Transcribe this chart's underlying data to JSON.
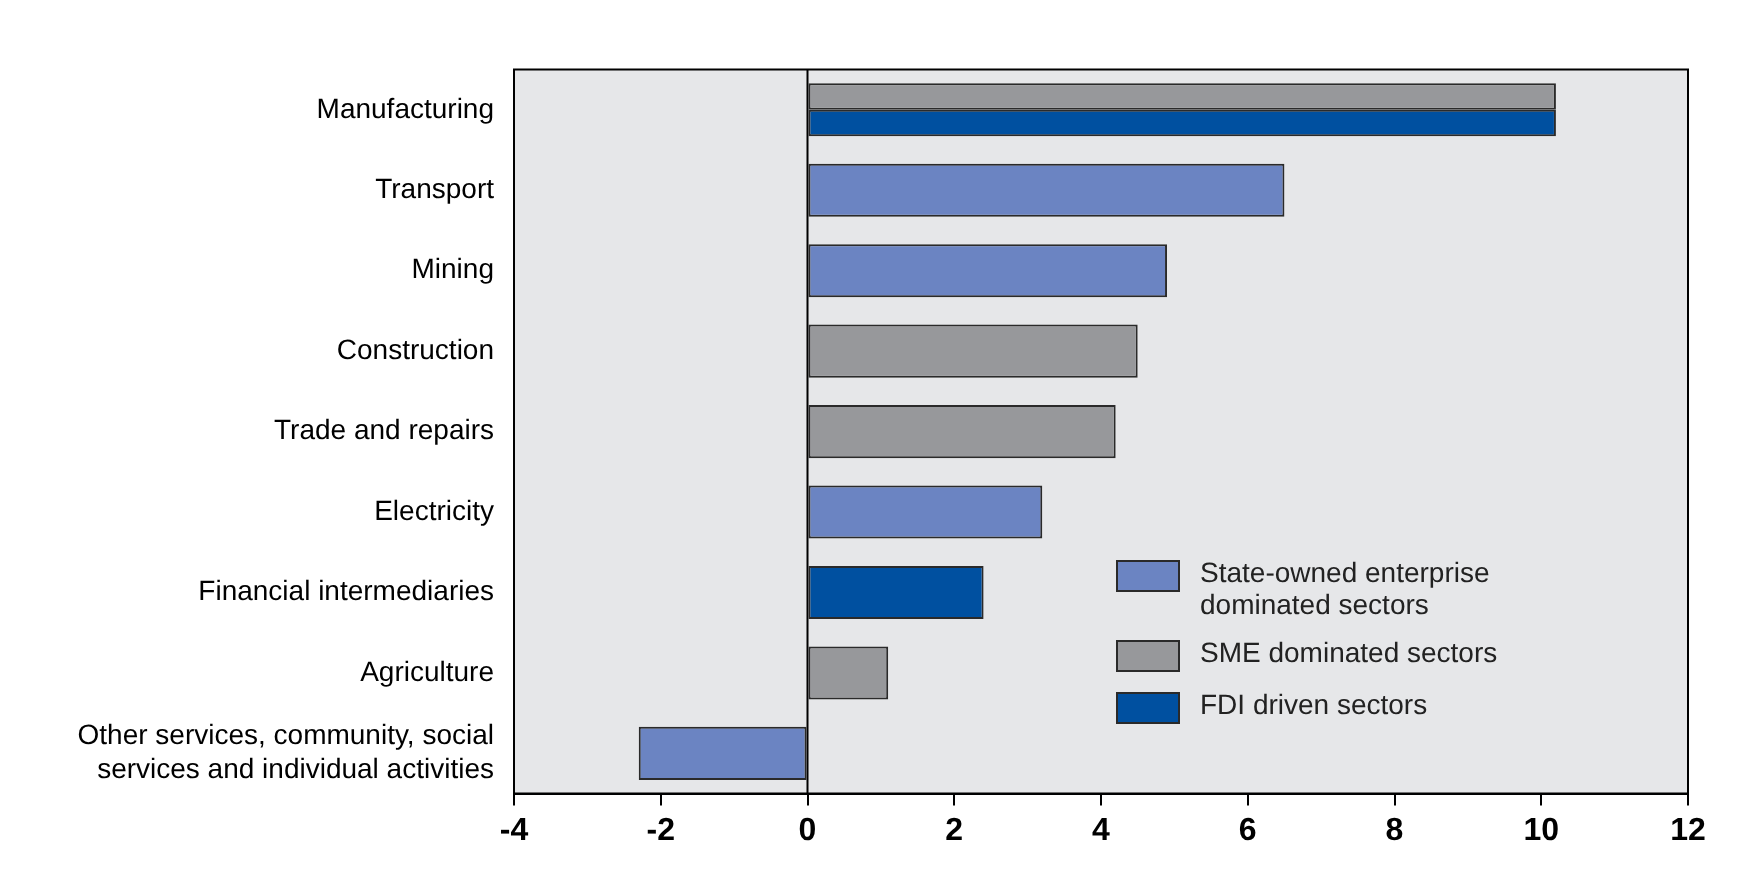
{
  "chart_data": {
    "type": "bar",
    "orientation": "horizontal",
    "categories": [
      "Manufacturing",
      "Transport",
      "Mining",
      "Construction",
      "Trade and repairs",
      "Electricity",
      "Financial intermediaries",
      "Agriculture",
      "Other services, community, social services and individual activities"
    ],
    "series": [
      {
        "name": "State-owned enterprise dominated sectors",
        "color": "#6b84c2",
        "values": [
          null,
          6.5,
          4.9,
          null,
          null,
          3.2,
          null,
          null,
          -2.3
        ]
      },
      {
        "name": "SME dominated sectors",
        "color": "#97989b",
        "values": [
          10.2,
          null,
          null,
          4.5,
          4.2,
          null,
          null,
          1.1,
          null
        ]
      },
      {
        "name": "FDI driven sectors",
        "color": "#0050a0",
        "values": [
          10.2,
          null,
          null,
          null,
          null,
          null,
          2.4,
          null,
          null
        ]
      }
    ],
    "xlim": [
      -4,
      12
    ],
    "xticks": [
      -4,
      -2,
      0,
      2,
      4,
      6,
      8,
      10,
      12
    ],
    "ref_lines": [
      {
        "axis": "x",
        "value": 0
      }
    ],
    "grid": false,
    "legend": "bottom right"
  }
}
